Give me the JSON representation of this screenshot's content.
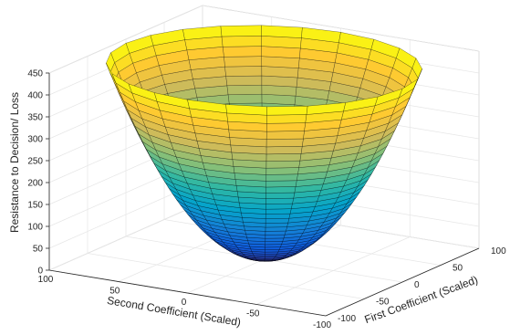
{
  "chart_data": {
    "type": "surface",
    "function": "z = x^2 + y^2 (paraboloid bowl)",
    "xlabel": "First Coefficient (Scaled)",
    "ylabel": "Second Coefficient (Scaled)",
    "zlabel": "Resistance to Decision/ Loss",
    "xlim": [
      -100,
      100
    ],
    "ylim": [
      -100,
      100
    ],
    "zlim": [
      0,
      450
    ],
    "x_ticks": [
      "-100",
      "-50",
      "0",
      "50",
      "100"
    ],
    "y_ticks": [
      "100",
      "50",
      "0",
      "-50",
      "-100"
    ],
    "z_ticks": [
      "0",
      "50",
      "100",
      "150",
      "200",
      "250",
      "300",
      "350",
      "400",
      "450"
    ],
    "z_range_plotted": [
      0,
      441
    ],
    "radius_range": [
      0,
      21
    ],
    "colormap": "parula",
    "colormap_stops": [
      "#352a87",
      "#0f5cdd",
      "#1481d6",
      "#06a4ca",
      "#2eb7a4",
      "#87bf77",
      "#d1bb59",
      "#fec832",
      "#f9fb0e"
    ],
    "grid": true,
    "box": true,
    "edge_color": "#000000"
  }
}
